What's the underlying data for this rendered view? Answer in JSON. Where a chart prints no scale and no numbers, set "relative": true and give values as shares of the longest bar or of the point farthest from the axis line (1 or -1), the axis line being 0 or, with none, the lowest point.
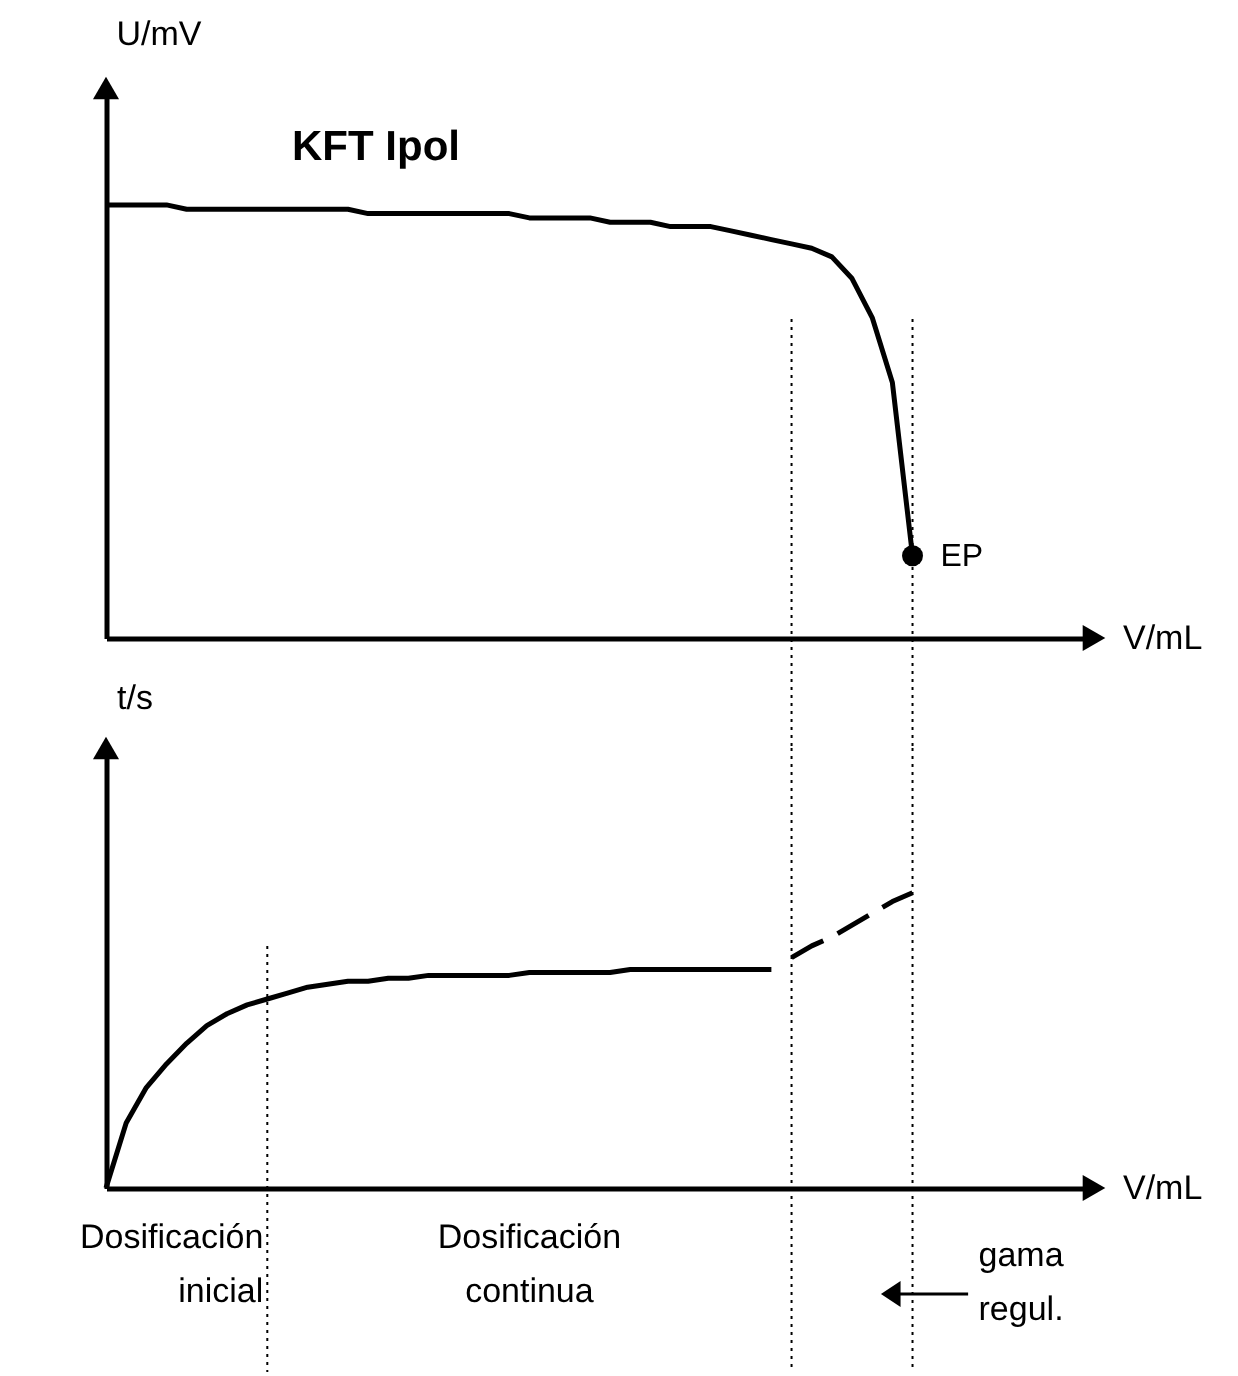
{
  "chart_data": [
    {
      "type": "line",
      "title": "KFT Ipol",
      "ylabel": "U/mV",
      "xlabel": "V/mL",
      "relative": true,
      "grid": "x",
      "categories": [
        null,
        null,
        null,
        null,
        null,
        null,
        null,
        null,
        null,
        null,
        null,
        null,
        null,
        null,
        null,
        null,
        null,
        null,
        null,
        null,
        null,
        null,
        null,
        null,
        null,
        null,
        null,
        null,
        null,
        null,
        null,
        null,
        null,
        null,
        null,
        null,
        null,
        null,
        null,
        null,
        null,
        null,
        null,
        null,
        null,
        null,
        null,
        null,
        null,
        null
      ],
      "series": [
        {
          "color": "#000000",
          "values": [
            1.0,
            1.0,
            1.0,
            1.0,
            0.99,
            0.99,
            0.99,
            0.99,
            0.99,
            0.99,
            0.99,
            0.99,
            0.99,
            0.98,
            0.98,
            0.98,
            0.98,
            0.98,
            0.98,
            0.98,
            0.98,
            0.97,
            0.97,
            0.97,
            0.97,
            0.96,
            0.96,
            0.96,
            0.95,
            0.95,
            0.95,
            0.94,
            0.93,
            0.92,
            0.91,
            0.9,
            0.88,
            0.83,
            0.74,
            0.59,
            0.19,
            null,
            null,
            null,
            null,
            null,
            null,
            null,
            null,
            null
          ]
        }
      ],
      "annotations": [
        "EP"
      ]
    },
    {
      "type": "line",
      "ylabel": "t/s",
      "xlabel": "V/mL",
      "relative": true,
      "grid": "x",
      "categories": [
        null,
        null,
        null,
        null,
        null,
        null,
        null,
        null,
        null,
        null,
        null,
        null,
        null,
        null,
        null,
        null,
        null,
        null,
        null,
        null,
        null,
        null,
        null,
        null,
        null,
        null,
        null,
        null,
        null,
        null,
        null,
        null,
        null,
        null,
        null,
        null,
        null,
        null,
        null,
        null,
        null,
        null,
        null,
        null,
        null,
        null,
        null,
        null,
        null,
        null
      ],
      "series": [
        {
          "color": "#000000",
          "values": [
            0,
            0.22,
            0.34,
            0.42,
            0.49,
            0.55,
            0.59,
            0.62,
            0.64,
            0.66,
            0.68,
            0.69,
            0.7,
            0.7,
            0.71,
            0.71,
            0.72,
            0.72,
            0.72,
            0.72,
            0.72,
            0.73,
            0.73,
            0.73,
            0.73,
            0.73,
            0.74,
            0.74,
            0.74,
            0.74,
            0.74,
            0.74,
            0.74,
            0.74,
            null,
            null,
            null,
            null,
            null,
            null,
            null,
            null,
            null,
            null,
            null,
            null,
            null,
            null,
            null,
            null
          ]
        },
        {
          "color": "#000000",
          "line_style": "dashed",
          "values": [
            null,
            null,
            null,
            null,
            null,
            null,
            null,
            null,
            null,
            null,
            null,
            null,
            null,
            null,
            null,
            null,
            null,
            null,
            null,
            null,
            null,
            null,
            null,
            null,
            null,
            null,
            null,
            null,
            null,
            null,
            null,
            null,
            null,
            null,
            0.78,
            0.82,
            0.85,
            0.89,
            0.93,
            0.97,
            1.0,
            null,
            null,
            null,
            null,
            null,
            null,
            null,
            null,
            null
          ]
        }
      ],
      "annotations": [
        "Dosificación inicial",
        "Dosificación continua",
        "gama regul."
      ]
    }
  ]
}
